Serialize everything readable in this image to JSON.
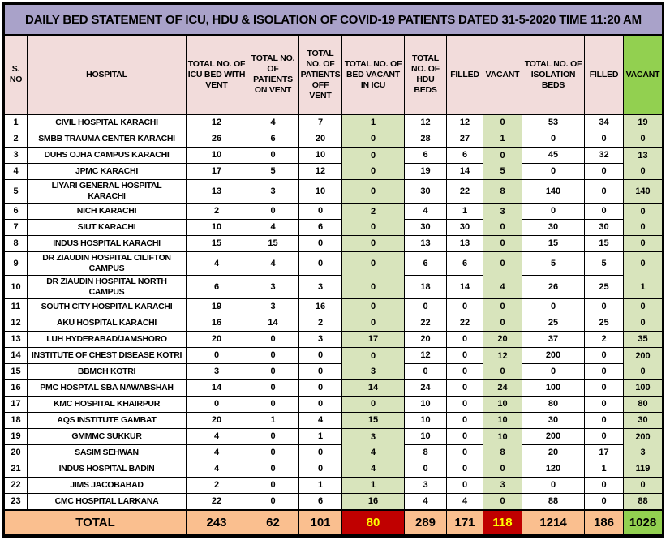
{
  "title": "DAILY BED STATEMENT OF ICU, HDU & ISOLATION OF COVID-19 PATIENTS DATED 31-5-2020 TIME 11:20 AM",
  "colors": {
    "title_bg": "#a9a2c9",
    "header_bg": "#f2dcdb",
    "green": "#92d050",
    "light_green": "#d8e4bc",
    "total_bg": "#fabf8f",
    "alert_bg": "#c00000",
    "alert_text": "#ffff00",
    "border": "#000000"
  },
  "table": {
    "columns": [
      "S. NO",
      "HOSPITAL",
      "TOTAL NO. OF ICU BED WITH VENT",
      "TOTAL NO. OF PATIENTS ON VENT",
      "TOTAL NO. OF PATIENTS OFF VENT",
      "TOTAL NO. OF BED VACANT IN ICU",
      "TOTAL NO. OF HDU BEDS",
      "FILLED",
      "VACANT",
      "TOTAL NO. OF ISOLATION BEDS",
      "FILLED",
      "VACANT"
    ],
    "rows": [
      {
        "sno": 1,
        "hospital": "CIVIL HOSPITAL KARACHI",
        "values": [
          12,
          4,
          7,
          1,
          12,
          12,
          0,
          53,
          34,
          19
        ]
      },
      {
        "sno": 2,
        "hospital": "SMBB TRAUMA CENTER KARACHI",
        "values": [
          26,
          6,
          20,
          0,
          28,
          27,
          1,
          0,
          0,
          0
        ]
      },
      {
        "sno": 3,
        "hospital": "DUHS OJHA CAMPUS KARACHI",
        "values": [
          10,
          0,
          10,
          0,
          6,
          6,
          0,
          45,
          32,
          13
        ]
      },
      {
        "sno": 4,
        "hospital": "JPMC KARACHI",
        "values": [
          17,
          5,
          12,
          0,
          19,
          14,
          5,
          0,
          0,
          0
        ]
      },
      {
        "sno": 5,
        "hospital": "LIYARI GENERAL HOSPITAL\nKARACHI",
        "values": [
          13,
          3,
          10,
          0,
          30,
          22,
          8,
          140,
          0,
          140
        ]
      },
      {
        "sno": 6,
        "hospital": "NICH KARACHI",
        "values": [
          2,
          0,
          0,
          2,
          4,
          1,
          3,
          0,
          0,
          0
        ]
      },
      {
        "sno": 7,
        "hospital": "SIUT KARACHI",
        "values": [
          10,
          4,
          6,
          0,
          30,
          30,
          0,
          30,
          30,
          0
        ]
      },
      {
        "sno": 8,
        "hospital": "INDUS HOSPITAL KARACHI",
        "values": [
          15,
          15,
          0,
          0,
          13,
          13,
          0,
          15,
          15,
          0
        ]
      },
      {
        "sno": 9,
        "hospital": "DR ZIAUDIN HOSPITAL CILIFTON\nCAMPUS",
        "values": [
          4,
          4,
          0,
          0,
          6,
          6,
          0,
          5,
          5,
          0
        ]
      },
      {
        "sno": 10,
        "hospital": "DR ZIAUDIN HOSPITAL NORTH\nCAMPUS",
        "values": [
          6,
          3,
          3,
          0,
          18,
          14,
          4,
          26,
          25,
          1
        ]
      },
      {
        "sno": 11,
        "hospital": "SOUTH CITY HOSPITAL KARACHI",
        "values": [
          19,
          3,
          16,
          0,
          0,
          0,
          0,
          0,
          0,
          0
        ]
      },
      {
        "sno": 12,
        "hospital": "AKU HOSPITAL KARACHI",
        "values": [
          16,
          14,
          2,
          0,
          22,
          22,
          0,
          25,
          25,
          0
        ]
      },
      {
        "sno": 13,
        "hospital": "LUH HYDERABAD/JAMSHORO",
        "values": [
          20,
          0,
          3,
          17,
          20,
          0,
          20,
          37,
          2,
          35
        ]
      },
      {
        "sno": 14,
        "hospital": "INSTITUTE OF CHEST DISEASE KOTRI",
        "values": [
          0,
          0,
          0,
          0,
          12,
          0,
          12,
          200,
          0,
          200
        ]
      },
      {
        "sno": 15,
        "hospital": "BBMCH KOTRI",
        "values": [
          3,
          0,
          0,
          3,
          0,
          0,
          0,
          0,
          0,
          0
        ]
      },
      {
        "sno": 16,
        "hospital": "PMC HOSPTAL SBA NAWABSHAH",
        "values": [
          14,
          0,
          0,
          14,
          24,
          0,
          24,
          100,
          0,
          100
        ]
      },
      {
        "sno": 17,
        "hospital": "KMC HOSPITAL KHAIRPUR",
        "values": [
          0,
          0,
          0,
          0,
          10,
          0,
          10,
          80,
          0,
          80
        ]
      },
      {
        "sno": 18,
        "hospital": "AQS INSTITUTE GAMBAT",
        "values": [
          20,
          1,
          4,
          15,
          10,
          0,
          10,
          30,
          0,
          30
        ]
      },
      {
        "sno": 19,
        "hospital": "GMMMC SUKKUR",
        "values": [
          4,
          0,
          1,
          3,
          10,
          0,
          10,
          200,
          0,
          200
        ]
      },
      {
        "sno": 20,
        "hospital": "SASIM SEHWAN",
        "values": [
          4,
          0,
          0,
          4,
          8,
          0,
          8,
          20,
          17,
          3
        ]
      },
      {
        "sno": 21,
        "hospital": "INDUS HOSPITAL BADIN",
        "values": [
          4,
          0,
          0,
          4,
          0,
          0,
          0,
          120,
          1,
          119
        ]
      },
      {
        "sno": 22,
        "hospital": "JIMS JACOBABAD",
        "values": [
          2,
          0,
          1,
          1,
          3,
          0,
          3,
          0,
          0,
          0
        ]
      },
      {
        "sno": 23,
        "hospital": "CMC HOSPITAL LARKANA",
        "values": [
          22,
          0,
          6,
          16,
          4,
          4,
          0,
          88,
          0,
          88
        ]
      }
    ],
    "total": {
      "label": "TOTAL",
      "values": [
        243,
        62,
        101,
        80,
        289,
        171,
        118,
        1214,
        186,
        1028
      ]
    }
  }
}
